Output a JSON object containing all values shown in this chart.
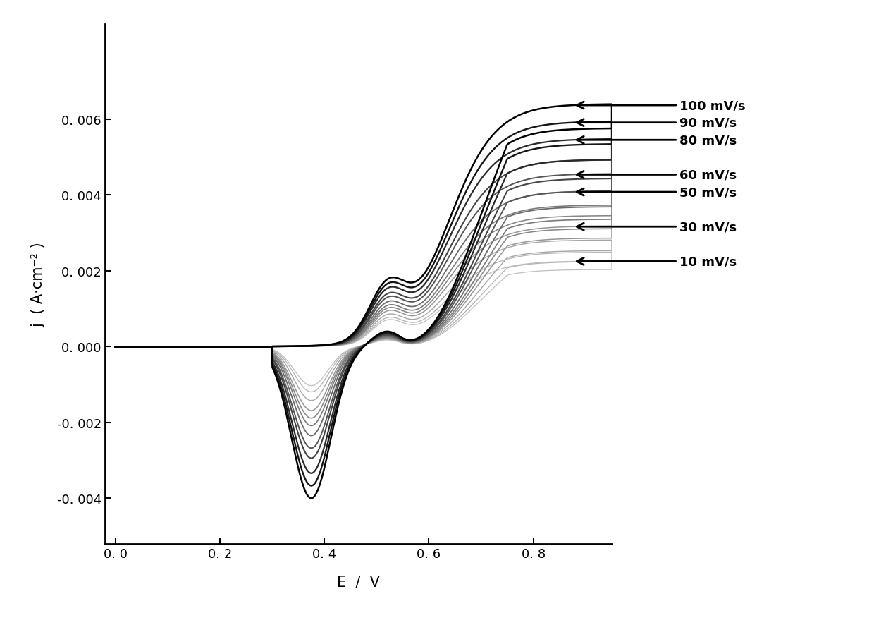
{
  "scan_rates": [
    10,
    30,
    50,
    60,
    80,
    90,
    100
  ],
  "scan_rate_scales": [
    0.1,
    0.3,
    0.5,
    0.6,
    0.8,
    0.9,
    1.0
  ],
  "xlabel": "E  /  V",
  "ylabel": "j  ( A·cm⁻² )",
  "xlim": [
    -0.02,
    0.95
  ],
  "ylim": [
    -0.0052,
    0.0085
  ],
  "xticks": [
    0.0,
    0.2,
    0.4,
    0.6,
    0.8
  ],
  "xtick_labels": [
    "0. 0",
    "0. 2",
    "0. 4",
    "0. 6",
    "0. 8"
  ],
  "yticks": [
    -0.004,
    -0.002,
    0.0,
    0.002,
    0.004,
    0.006
  ],
  "ytick_labels": [
    "-0. 004",
    "-0. 002",
    "0. 000",
    "0. 002",
    "0. 004",
    "0. 006"
  ],
  "background_color": "#ffffff",
  "axis_fontsize": 15,
  "tick_fontsize": 13,
  "arrow_label_fontsize": 13,
  "n_extra_curves": 5,
  "extra_scales": [
    0.15,
    0.22,
    0.36,
    0.42,
    0.68
  ]
}
